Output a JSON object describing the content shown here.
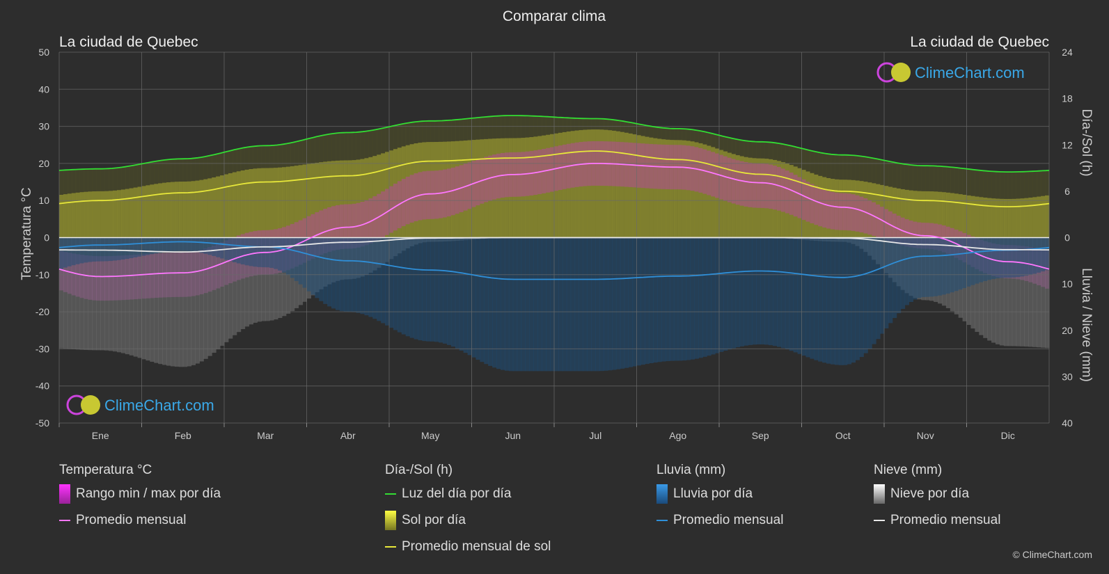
{
  "title": "Comparar clima",
  "city_left": "La ciudad de Quebec",
  "city_right": "La ciudad de Quebec",
  "logo_text": "ClimeChart.com",
  "copyright": "© ClimeChart.com",
  "chart_data": {
    "type": "line",
    "categories": [
      "Ene",
      "Feb",
      "Mar",
      "Abr",
      "May",
      "Jun",
      "Jul",
      "Ago",
      "Sep",
      "Oct",
      "Nov",
      "Dic"
    ],
    "y_left": {
      "label": "Temperatura °C",
      "range": [
        -50,
        50
      ],
      "ticks": [
        50,
        40,
        30,
        20,
        10,
        0,
        -10,
        -20,
        -30,
        -40,
        -50
      ]
    },
    "y_right_top": {
      "label": "Día-/Sol (h)",
      "range": [
        0,
        24
      ],
      "ticks": [
        24,
        18,
        12,
        6,
        0
      ]
    },
    "y_right_bottom": {
      "label": "Lluvia / Nieve (mm)",
      "range": [
        0,
        40
      ],
      "ticks": [
        10,
        20,
        30,
        40
      ]
    },
    "grid": true,
    "series": [
      {
        "name": "Luz del día por día",
        "unit": "h",
        "color": "#33dd33",
        "values": [
          8.9,
          10.2,
          11.9,
          13.6,
          15.1,
          15.8,
          15.4,
          14.1,
          12.4,
          10.7,
          9.3,
          8.5
        ]
      },
      {
        "name": "Promedio mensual de sol",
        "unit": "h",
        "color": "#e8e83a",
        "values": [
          4.8,
          5.8,
          7.2,
          8.0,
          9.9,
          10.3,
          11.2,
          10.1,
          8.2,
          6.0,
          4.8,
          4.0
        ]
      },
      {
        "name": "Promedio mensual",
        "group": "Temperatura °C",
        "unit": "°C",
        "color": "#ff77ff",
        "values": [
          -10.5,
          -9.5,
          -4.0,
          2.8,
          11.8,
          17.0,
          20.0,
          19.0,
          14.8,
          8.2,
          0.5,
          -6.5
        ]
      },
      {
        "name": "Promedio mensual",
        "group": "Lluvia (mm)",
        "unit": "mm",
        "color": "#2f8fd8",
        "values": [
          1.6,
          0.9,
          2.0,
          5.0,
          7.0,
          9.0,
          9.0,
          8.3,
          7.2,
          8.6,
          4.0,
          2.7
        ]
      },
      {
        "name": "Promedio mensual",
        "group": "Nieve (mm)",
        "unit": "mm",
        "color": "#e8e8e8",
        "values": [
          2.7,
          3.1,
          2.0,
          1.0,
          0.1,
          0.0,
          0.0,
          0.0,
          0.0,
          0.1,
          1.5,
          2.6
        ]
      }
    ],
    "ranges": {
      "temp_max": [
        -5,
        -4,
        2,
        9,
        18,
        23,
        26,
        25,
        20,
        12,
        4,
        -2
      ],
      "temp_min": [
        -17,
        -16,
        -10,
        -3,
        5,
        11,
        14,
        13,
        8,
        2,
        -3,
        -11
      ]
    }
  },
  "legend": [
    {
      "header": "Temperatura °C",
      "items": [
        {
          "label": "Rango min / max por día",
          "swatch": "box",
          "color": "#d63cd6"
        },
        {
          "label": "Promedio mensual",
          "swatch": "line",
          "color": "#ff77ff"
        }
      ]
    },
    {
      "header": "Día-/Sol (h)",
      "items": [
        {
          "label": "Luz del día por día",
          "swatch": "line",
          "color": "#33dd33"
        },
        {
          "label": "Sol por día",
          "swatch": "box",
          "color": "#c8c832"
        },
        {
          "label": "Promedio mensual de sol",
          "swatch": "line",
          "color": "#e8e83a"
        }
      ]
    },
    {
      "header": "Lluvia (mm)",
      "items": [
        {
          "label": "Lluvia por día",
          "swatch": "box",
          "color": "#2f7fc8"
        },
        {
          "label": "Promedio mensual",
          "swatch": "line",
          "color": "#2f8fd8"
        }
      ]
    },
    {
      "header": "Nieve (mm)",
      "items": [
        {
          "label": "Nieve por día",
          "swatch": "box",
          "color": "#cccccc"
        },
        {
          "label": "Promedio mensual",
          "swatch": "line",
          "color": "#e8e8e8"
        }
      ]
    }
  ]
}
